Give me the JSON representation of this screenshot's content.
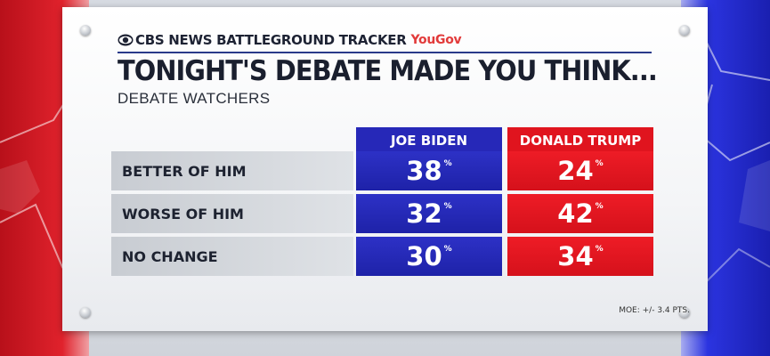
{
  "brand": {
    "network": "CBS NEWS BATTLEGROUND TRACKER",
    "partner": "YouGov"
  },
  "title": "TONIGHT'S DEBATE MADE YOU THINK...",
  "subtitle": "DEBATE WATCHERS",
  "columns": [
    {
      "label": "JOE BIDEN",
      "color": "#2628b8"
    },
    {
      "label": "DONALD TRUMP",
      "color": "#e0141e"
    }
  ],
  "rows": [
    {
      "label": "BETTER OF HIM",
      "biden": "38",
      "trump": "24"
    },
    {
      "label": "WORSE OF HIM",
      "biden": "32",
      "trump": "42"
    },
    {
      "label": "NO CHANGE",
      "biden": "30",
      "trump": "34"
    }
  ],
  "percent_sign": "%",
  "moe": "MOE: +/- 3.4 PTS.",
  "chart_data": {
    "type": "table",
    "title": "TONIGHT'S DEBATE MADE YOU THINK...",
    "subtitle": "DEBATE WATCHERS",
    "columns": [
      "JOE BIDEN",
      "DONALD TRUMP"
    ],
    "categories": [
      "BETTER OF HIM",
      "WORSE OF HIM",
      "NO CHANGE"
    ],
    "series": [
      {
        "name": "JOE BIDEN",
        "values": [
          38,
          32,
          30
        ]
      },
      {
        "name": "DONALD TRUMP",
        "values": [
          24,
          42,
          34
        ]
      }
    ]
  }
}
